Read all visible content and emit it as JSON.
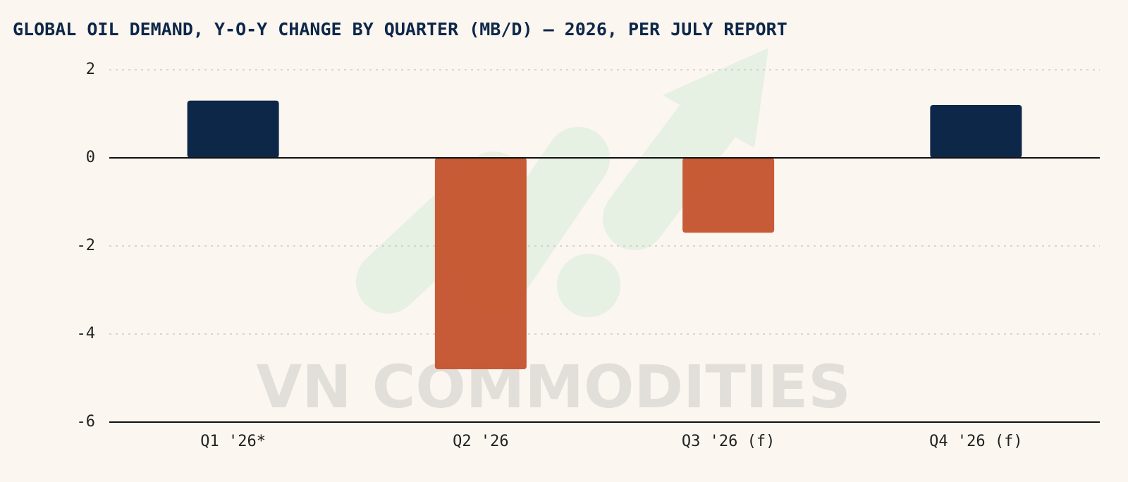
{
  "chart_data": {
    "type": "bar",
    "title": "GLOBAL OIL DEMAND, Y-O-Y CHANGE BY QUARTER (MB/D) — 2026, PER JULY REPORT",
    "watermark": "VN COMMODITIES",
    "categories": [
      "Q1 '26*",
      "Q2 '26",
      "Q3 '26 (f)",
      "Q4 '26 (f)"
    ],
    "values": [
      1.3,
      -4.8,
      -1.7,
      1.2
    ],
    "positive_color": "#0d2748",
    "negative_color": "#c4522c",
    "ylim": [
      -6,
      2
    ],
    "yticks": [
      -6,
      -4,
      -2,
      0,
      2
    ],
    "grid": true
  }
}
